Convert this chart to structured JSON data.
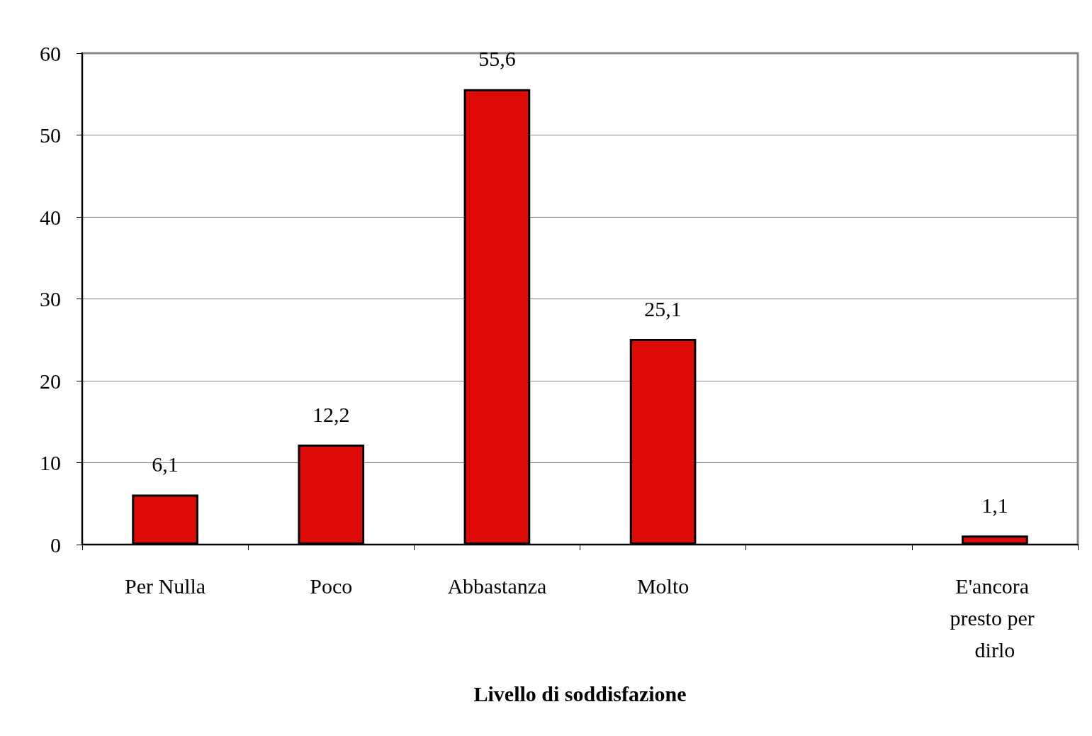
{
  "chart_data": {
    "type": "bar",
    "xlabel": "Livello di soddisfazione",
    "categories": [
      "Per Nulla",
      "Poco",
      "Abbastanza",
      "Molto",
      null,
      "E'ancora presto per dirlo"
    ],
    "values": [
      6.1,
      12.2,
      55.6,
      25.1,
      null,
      1.1
    ],
    "color": "#dd0a05",
    "ylim": [
      0,
      60
    ],
    "yticks": [
      0,
      10,
      20,
      30,
      40,
      50,
      60
    ],
    "value_labels": [
      "6,1",
      "12,2",
      "55,6",
      "25,1",
      null,
      "1,1"
    ],
    "grid": "y"
  }
}
